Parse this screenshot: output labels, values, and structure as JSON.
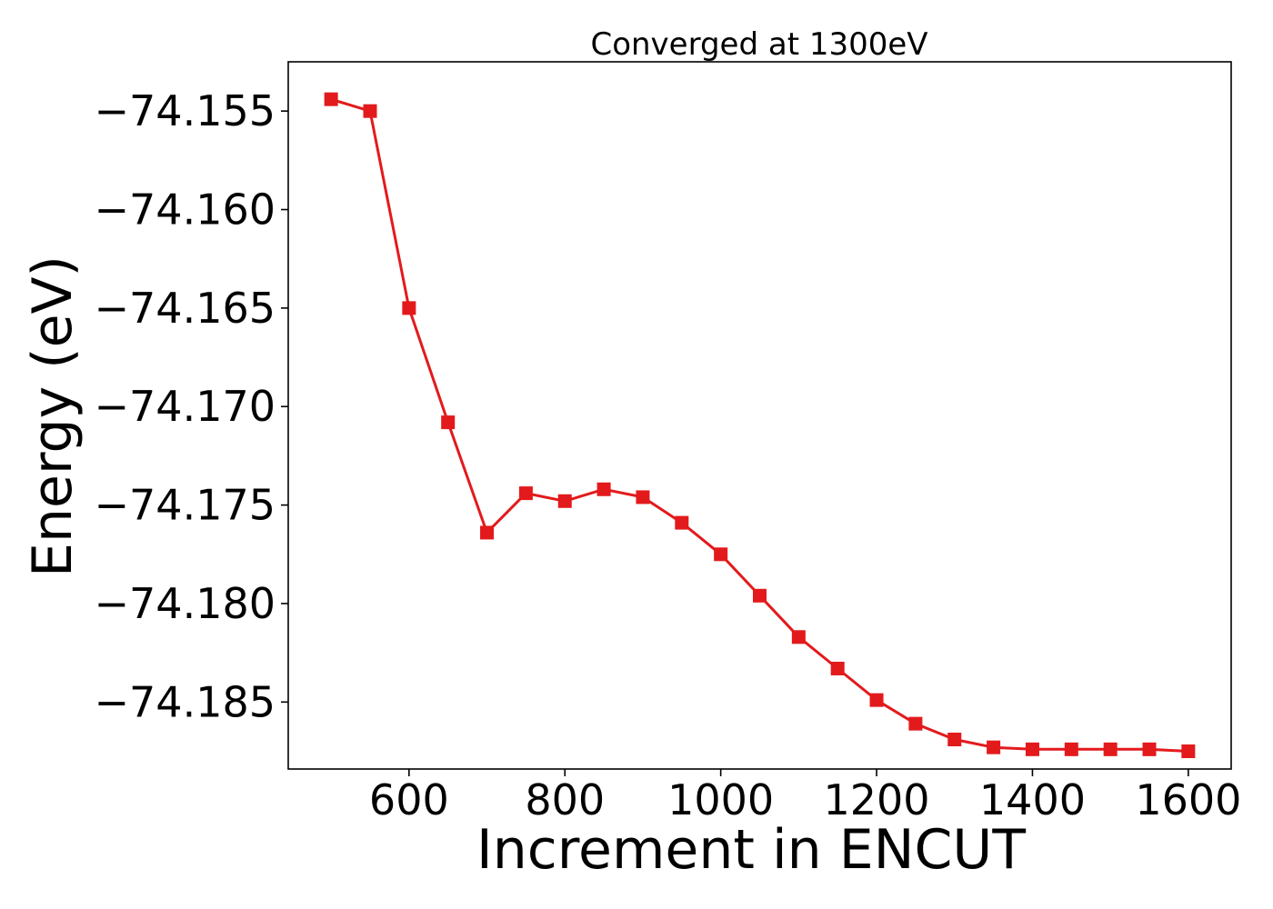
{
  "chart_data": {
    "type": "line",
    "title": "Converged at 1300eV",
    "xlabel": "Increment in ENCUT",
    "ylabel": "Energy (eV)",
    "xlim": [
      445,
      1655
    ],
    "ylim": [
      -74.1884,
      -74.1525
    ],
    "x_ticks": [
      600,
      800,
      1000,
      1200,
      1400,
      1600
    ],
    "x_tick_labels": [
      "600",
      "800",
      "1000",
      "1200",
      "1400",
      "1600"
    ],
    "y_ticks": [
      -74.155,
      -74.16,
      -74.165,
      -74.17,
      -74.175,
      -74.18,
      -74.185
    ],
    "y_tick_labels": [
      "−74.155",
      "−74.160",
      "−74.165",
      "−74.170",
      "−74.175",
      "−74.180",
      "−74.185"
    ],
    "grid": false,
    "series": [
      {
        "color": "#e31a1c",
        "marker": "square",
        "x": [
          500,
          550,
          600,
          650,
          700,
          750,
          800,
          850,
          900,
          950,
          1000,
          1050,
          1100,
          1150,
          1200,
          1250,
          1300,
          1350,
          1400,
          1450,
          1500,
          1550,
          1600
        ],
        "values": [
          -74.1544,
          -74.155,
          -74.165,
          -74.1708,
          -74.1764,
          -74.1744,
          -74.1748,
          -74.1742,
          -74.1746,
          -74.1759,
          -74.1775,
          -74.1796,
          -74.1817,
          -74.1833,
          -74.1849,
          -74.1861,
          -74.1869,
          -74.1873,
          -74.1874,
          -74.1874,
          -74.1874,
          -74.1874,
          -74.1875
        ]
      }
    ]
  }
}
